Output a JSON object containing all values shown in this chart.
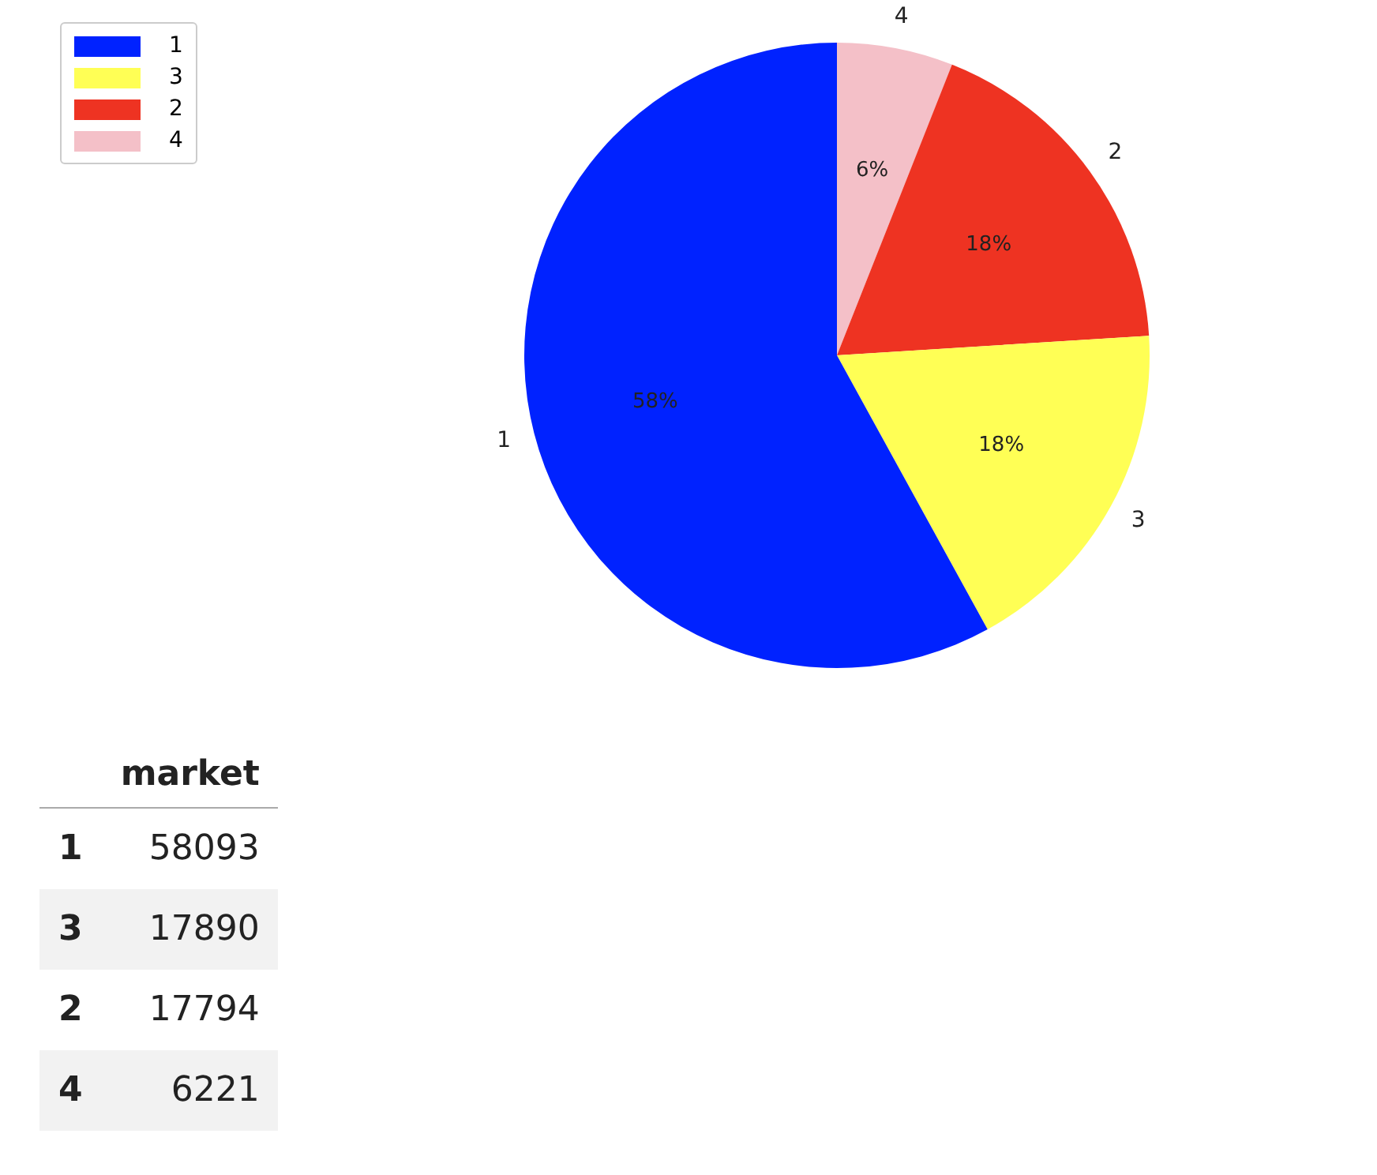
{
  "chart_data": {
    "type": "pie",
    "categories": [
      "1",
      "3",
      "2",
      "4"
    ],
    "values": [
      58,
      18,
      18,
      6
    ],
    "colors": [
      "#0022ff",
      "#ffff55",
      "#ee3322",
      "#f4c0c8"
    ],
    "value_labels": [
      "58%",
      "18%",
      "18%",
      "6%"
    ],
    "legend": "top left",
    "annotations": [
      "market",
      "58093",
      "17890",
      "17794",
      "6221"
    ]
  }
}
